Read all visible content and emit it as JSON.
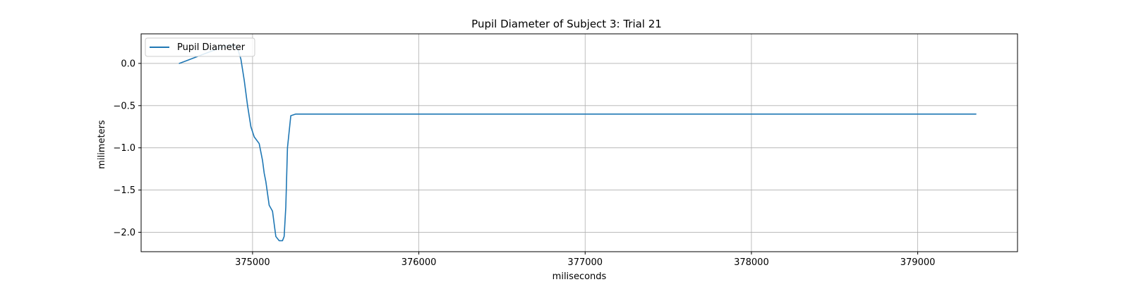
{
  "chart_data": {
    "type": "line",
    "title": "Pupil Diameter of Subject 3: Trial 21",
    "xlabel": "miliseconds",
    "ylabel": "milimeters",
    "xlim": [
      374330,
      379600
    ],
    "ylim": [
      -2.23,
      0.35
    ],
    "xticks": [
      375000,
      376000,
      377000,
      378000,
      379000
    ],
    "yticks": [
      0.0,
      -0.5,
      -1.0,
      -1.5,
      -2.0
    ],
    "xtick_labels": [
      "375000",
      "376000",
      "377000",
      "378000",
      "379000"
    ],
    "ytick_labels": [
      "0.0",
      "−0.5",
      "−1.0",
      "−1.5",
      "−2.0"
    ],
    "grid": true,
    "legend": {
      "position": "top-left",
      "entries": [
        "Pupil Diameter"
      ]
    },
    "series": [
      {
        "name": "Pupil Diameter",
        "color": "#1f77b4",
        "x": [
          374560,
          374600,
          374640,
          374680,
          374720,
          374760,
          374800,
          374840,
          374880,
          374910,
          374930,
          374950,
          374970,
          374990,
          375010,
          375040,
          375060,
          375070,
          375080,
          375100,
          375120,
          375140,
          375160,
          375170,
          375180,
          375190,
          375200,
          375210,
          375230,
          375260,
          376000,
          377000,
          378000,
          379000,
          379350
        ],
        "values": [
          0.0,
          0.03,
          0.06,
          0.09,
          0.12,
          0.15,
          0.18,
          0.21,
          0.22,
          0.18,
          0.05,
          -0.2,
          -0.5,
          -0.75,
          -0.87,
          -0.95,
          -1.15,
          -1.3,
          -1.4,
          -1.68,
          -1.75,
          -2.05,
          -2.1,
          -2.1,
          -2.1,
          -2.05,
          -1.7,
          -1.0,
          -0.62,
          -0.6,
          -0.6,
          -0.6,
          -0.6,
          -0.6,
          -0.6
        ]
      }
    ]
  }
}
